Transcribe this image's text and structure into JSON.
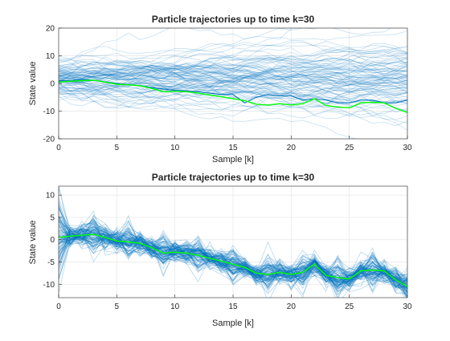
{
  "chart_data": [
    {
      "type": "line",
      "title": "Particle trajectories up to time k=30",
      "xlabel": "Sample [k]",
      "ylabel": "State value",
      "xlim": [
        0,
        30
      ],
      "ylim": [
        -20,
        20
      ],
      "xticks": [
        "0",
        "5",
        "10",
        "15",
        "20",
        "25",
        "30"
      ],
      "yticks": [
        "-20",
        "-10",
        "0",
        "10",
        "20"
      ],
      "grid": true,
      "series": [
        {
          "role": "particles",
          "color": "#0072BD",
          "count": 100,
          "spread_start": 3,
          "step_sigma": 1.2
        },
        {
          "role": "highlighted-particle",
          "color": "#0072BD",
          "x": [
            0,
            1,
            2,
            3,
            4,
            5,
            6,
            7,
            8,
            9,
            10,
            11,
            12,
            13,
            14,
            15,
            16,
            17,
            18,
            19,
            20,
            21,
            22,
            23,
            24,
            25,
            26,
            27,
            28,
            29,
            30
          ],
          "y": [
            1,
            1,
            1.5,
            1.2,
            0.5,
            0,
            -0.5,
            -0.8,
            -1.5,
            -2,
            -2.5,
            -2.7,
            -3,
            -3.5,
            -4,
            -4,
            -7,
            -5,
            -4,
            -4.5,
            -4.5,
            -6,
            -5.5,
            -6,
            -7,
            -7,
            -6,
            -6,
            -7,
            -7,
            -6
          ]
        },
        {
          "role": "true-state",
          "color": "#00FF00",
          "x": [
            0,
            1,
            2,
            3,
            4,
            5,
            6,
            7,
            8,
            9,
            10,
            11,
            12,
            13,
            14,
            15,
            16,
            17,
            18,
            19,
            20,
            21,
            22,
            23,
            24,
            25,
            26,
            27,
            28,
            29,
            30
          ],
          "y": [
            0.5,
            0.8,
            1,
            1.2,
            0.5,
            -0.3,
            -0.5,
            -0.8,
            -1.8,
            -3,
            -2.8,
            -3,
            -3.5,
            -4.2,
            -4.8,
            -5.5,
            -6.2,
            -7.5,
            -7.8,
            -7.3,
            -7.8,
            -7.3,
            -5.5,
            -8,
            -8.5,
            -8.8,
            -7,
            -6.8,
            -7,
            -9,
            -10.5
          ]
        }
      ]
    },
    {
      "type": "line",
      "title": "Particle trajectories up to time k=30",
      "xlabel": "Sample [k]",
      "ylabel": "State value",
      "xlim": [
        0,
        30
      ],
      "ylim": [
        -13,
        12
      ],
      "xticks": [
        "0",
        "5",
        "10",
        "15",
        "20",
        "25",
        "30"
      ],
      "yticks": [
        "-10",
        "-5",
        "0",
        "5",
        "10"
      ],
      "grid": true,
      "series": [
        {
          "role": "particles",
          "color": "#0072BD",
          "count": 100,
          "spread_start": 3,
          "step_sigma": 1.2
        },
        {
          "role": "true-state",
          "color": "#00FF00",
          "x": [
            0,
            1,
            2,
            3,
            4,
            5,
            6,
            7,
            8,
            9,
            10,
            11,
            12,
            13,
            14,
            15,
            16,
            17,
            18,
            19,
            20,
            21,
            22,
            23,
            24,
            25,
            26,
            27,
            28,
            29,
            30
          ],
          "y": [
            0.5,
            0.8,
            1,
            1.2,
            0.5,
            -0.3,
            -0.5,
            -0.8,
            -1.8,
            -3,
            -2.8,
            -3,
            -3.5,
            -4.2,
            -4.8,
            -5.5,
            -6.2,
            -7.5,
            -7.8,
            -7.3,
            -7.8,
            -7.3,
            -5.5,
            -8,
            -8.5,
            -8.8,
            -7,
            -6.8,
            -7,
            -9,
            -10.5
          ]
        }
      ]
    }
  ]
}
